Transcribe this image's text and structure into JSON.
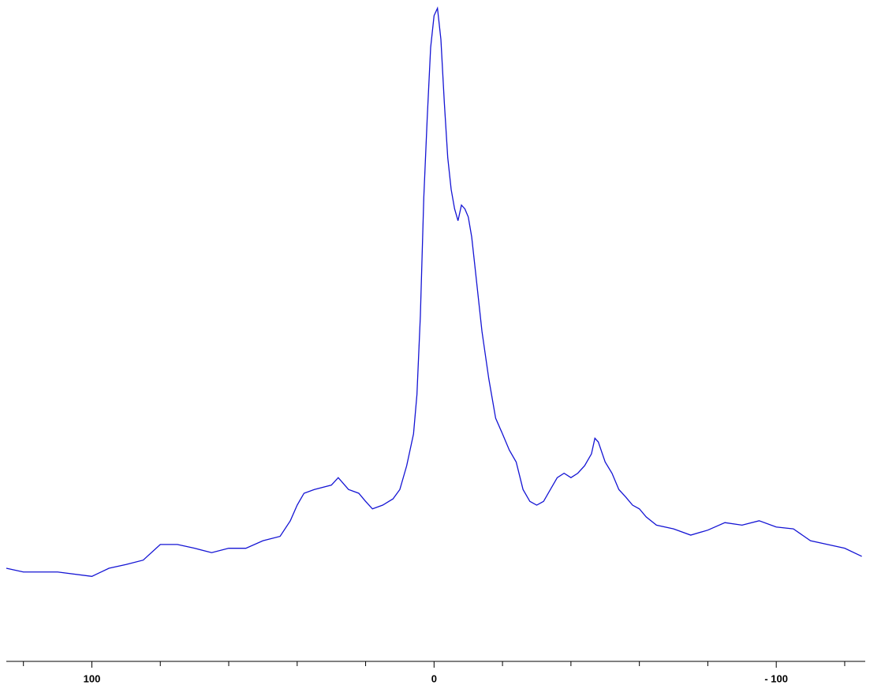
{
  "chart_data": {
    "type": "line",
    "x": [
      125,
      120,
      110,
      100,
      95,
      90,
      85,
      80,
      75,
      70,
      65,
      60,
      55,
      50,
      45,
      42,
      40,
      38,
      35,
      30,
      28,
      25,
      22,
      20,
      18,
      15,
      12,
      10,
      8,
      6,
      5,
      4,
      3,
      2,
      1,
      0,
      -1,
      -2,
      -3,
      -4,
      -5,
      -6,
      -7,
      -8,
      -9,
      -10,
      -11,
      -12,
      -14,
      -16,
      -18,
      -20,
      -22,
      -24,
      -26,
      -28,
      -30,
      -32,
      -34,
      -36,
      -38,
      -40,
      -42,
      -44,
      -46,
      -47,
      -48,
      -50,
      -52,
      -54,
      -56,
      -58,
      -60,
      -62,
      -65,
      -70,
      -75,
      -80,
      -85,
      -90,
      -95,
      -100,
      -105,
      -110,
      -115,
      -120,
      -125
    ],
    "series": [
      {
        "color": "#1414d4",
        "values": [
          10.1,
          9.5,
          9.5,
          8.8,
          10.1,
          10.7,
          11.4,
          13.9,
          13.9,
          13.3,
          12.6,
          13.3,
          13.3,
          14.5,
          15.2,
          17.7,
          20.2,
          22.1,
          22.7,
          23.4,
          24.6,
          22.7,
          22.1,
          20.8,
          19.6,
          20.2,
          21.2,
          22.7,
          26.5,
          31.6,
          37.9,
          50.5,
          69.4,
          82.1,
          93.4,
          98.5,
          99.7,
          94.7,
          84.6,
          75.8,
          70.7,
          67.6,
          65.7,
          68.2,
          67.6,
          66.3,
          63.1,
          58.1,
          48.0,
          40.4,
          34.1,
          31.6,
          29.0,
          27.1,
          22.7,
          20.8,
          20.2,
          20.8,
          22.7,
          24.6,
          25.3,
          24.6,
          25.3,
          26.5,
          28.4,
          30.9,
          30.3,
          27.1,
          25.3,
          22.7,
          21.5,
          20.2,
          19.6,
          18.3,
          17.0,
          16.4,
          15.4,
          16.2,
          17.4,
          17.0,
          17.7,
          16.7,
          16.4,
          14.5,
          13.9,
          13.3,
          12.0
        ]
      }
    ],
    "xlim": [
      125,
      -126
    ],
    "ylim": [
      0,
      100
    ],
    "xticks": [
      100,
      0,
      {
        "value": -100,
        "label": "- 100"
      }
    ],
    "xminorticks": [
      120,
      80,
      60,
      40,
      20,
      -20,
      -40,
      -60,
      -80,
      -120
    ]
  }
}
